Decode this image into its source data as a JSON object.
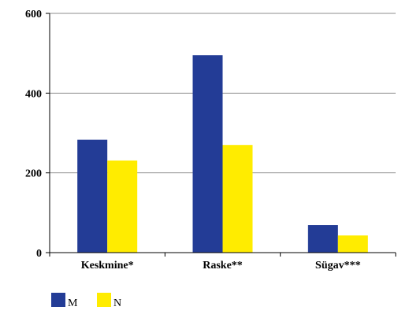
{
  "chart_data": {
    "type": "bar",
    "categories": [
      "Keskmine*",
      "Raske**",
      "Sügav***"
    ],
    "series": [
      {
        "name": "M",
        "values": [
          283,
          495,
          69
        ],
        "color": "#233c96"
      },
      {
        "name": "N",
        "values": [
          231,
          270,
          43
        ],
        "color": "#ffec00"
      }
    ],
    "yticks": [
      0,
      200,
      400,
      600
    ],
    "ylim": [
      0,
      600
    ],
    "grid": true,
    "legend_position": "bottom-left",
    "title": "",
    "xlabel": "",
    "ylabel": ""
  }
}
